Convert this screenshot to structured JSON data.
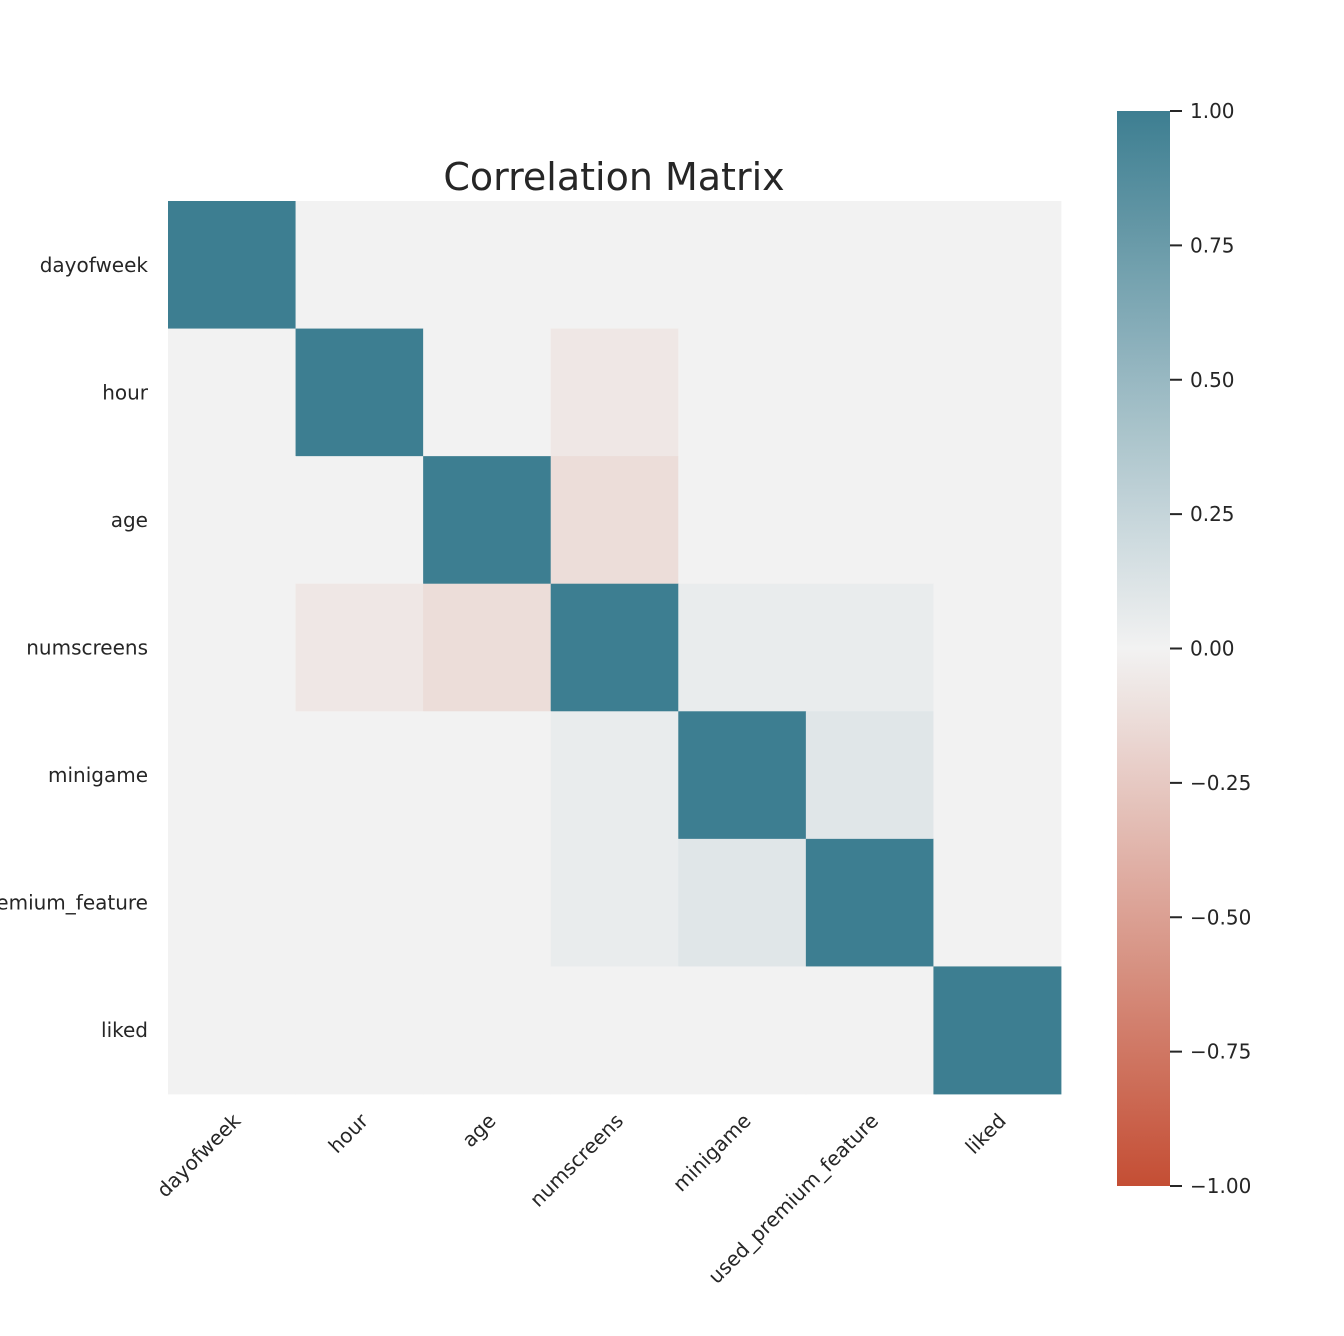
{
  "chart_data": {
    "type": "heatmap",
    "title": "Correlation Matrix",
    "xlabel": "",
    "ylabel": "",
    "labels": [
      "dayofweek",
      "hour",
      "age",
      "numscreens",
      "minigame",
      "used_premium_feature",
      "liked"
    ],
    "matrix": [
      [
        null,
        null,
        null,
        null,
        null,
        null,
        null
      ],
      [
        0.0,
        null,
        null,
        null,
        null,
        null,
        null
      ],
      [
        0.0,
        0.0,
        null,
        null,
        null,
        null,
        null
      ],
      [
        0.0,
        -0.07,
        -0.13,
        null,
        null,
        null,
        null
      ],
      [
        0.0,
        0.0,
        0.0,
        0.05,
        null,
        null,
        null
      ],
      [
        0.0,
        0.0,
        0.0,
        0.05,
        0.1,
        null,
        null
      ],
      [
        0.0,
        0.0,
        0.0,
        0.0,
        0.0,
        0.0,
        null
      ]
    ],
    "diagonal_value": 1.0,
    "colorbar": {
      "min": -1.0,
      "max": 1.0,
      "ticks": [
        1.0,
        0.75,
        0.5,
        0.25,
        0.0,
        -0.25,
        -0.5,
        -0.75,
        -1.0
      ],
      "tick_labels": [
        "1.00",
        "0.75",
        "0.50",
        "0.25",
        "0.00",
        "−0.25",
        "−0.50",
        "−0.75",
        "−1.00"
      ],
      "colors": {
        "negative_end": "#c44e34",
        "center": "#f2f2f2",
        "positive_end": "#3d7e91"
      }
    }
  }
}
